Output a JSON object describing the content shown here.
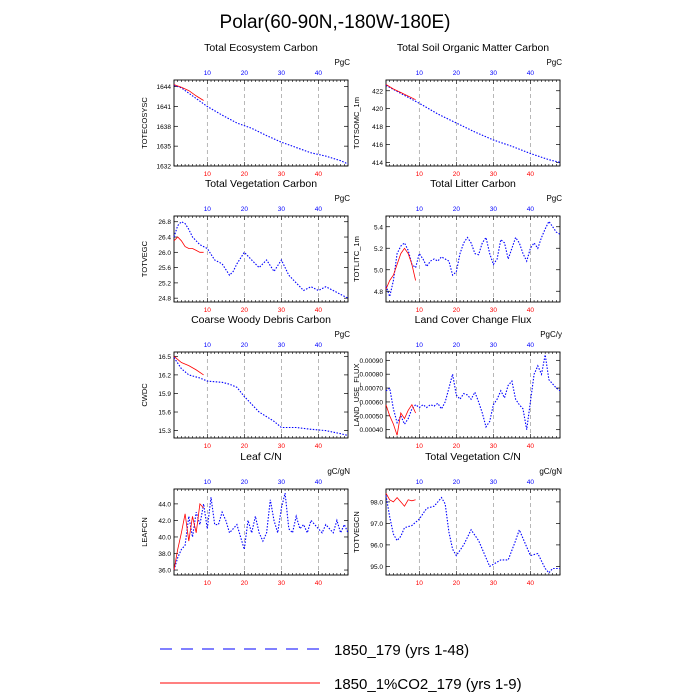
{
  "page_title": "Polar(60-90N,-180W-180E)",
  "colors": {
    "control": "#0000ff",
    "experiment": "#ff0000",
    "axis": "#000000",
    "grid": "#999999"
  },
  "legend": [
    {
      "name": "1850_179 (yrs 1-48)",
      "style": "dashed",
      "color": "#0000ff"
    },
    {
      "name": "1850_1%CO2_179 (yrs 1-9)",
      "style": "solid",
      "color": "#ff0000"
    }
  ],
  "chart_data": [
    {
      "type": "line",
      "title": "Total Ecosystem Carbon",
      "ylabel": "TOTECOSYSC",
      "unit": "PgC",
      "xlim": [
        1,
        48
      ],
      "xticks": [
        10,
        20,
        30,
        40
      ],
      "yticks": [
        1632,
        1635,
        1638,
        1641,
        1644
      ],
      "ylim": [
        1632,
        1645
      ],
      "grid_x": true,
      "series": [
        {
          "name": "1850_179 (yrs 1-48)",
          "x": [
            1,
            3,
            5,
            8,
            10,
            14,
            18,
            22,
            26,
            30,
            34,
            38,
            42,
            46,
            48
          ],
          "y": [
            1644.2,
            1643.8,
            1643.0,
            1641.8,
            1641.0,
            1639.7,
            1638.5,
            1637.7,
            1636.6,
            1635.6,
            1634.8,
            1634.0,
            1633.5,
            1632.8,
            1632.3
          ]
        },
        {
          "name": "1850_1%CO2_179 (yrs 1-9)",
          "x": [
            1,
            3,
            5,
            7,
            9
          ],
          "y": [
            1644.3,
            1643.9,
            1643.4,
            1642.6,
            1641.9
          ]
        }
      ]
    },
    {
      "type": "line",
      "title": "Total Soil Organic Matter Carbon",
      "ylabel": "TOTSOMC_1m",
      "unit": "PgC",
      "xlim": [
        1,
        48
      ],
      "xticks": [
        10,
        20,
        30,
        40
      ],
      "yticks": [
        414.0,
        416.0,
        418.0,
        420.0,
        422.0
      ],
      "ylim": [
        413.6,
        423.2
      ],
      "grid_x": true,
      "series": [
        {
          "name": "1850_179 (yrs 1-48)",
          "x": [
            1,
            5,
            10,
            15,
            20,
            25,
            30,
            35,
            40,
            45,
            48
          ],
          "y": [
            422.6,
            421.7,
            420.6,
            419.4,
            418.4,
            417.4,
            416.5,
            415.8,
            415.0,
            414.3,
            414.0
          ]
        },
        {
          "name": "1850_1%CO2_179 (yrs 1-9)",
          "x": [
            1,
            3,
            5,
            7,
            9
          ],
          "y": [
            422.7,
            422.2,
            421.8,
            421.4,
            421.0
          ]
        }
      ]
    },
    {
      "type": "line",
      "title": "Total Vegetation Carbon",
      "ylabel": "TOTVEGC",
      "unit": "PgC",
      "xlim": [
        1,
        48
      ],
      "xticks": [
        10,
        20,
        30,
        40
      ],
      "yticks": [
        24.8,
        25.2,
        25.6,
        26.0,
        26.4,
        26.8
      ],
      "ylim": [
        24.7,
        26.95
      ],
      "grid_x": true,
      "series": [
        {
          "name": "1850_179 (yrs 1-48)",
          "x": [
            1,
            2,
            3,
            4,
            5,
            6,
            8,
            10,
            12,
            14,
            16,
            17,
            18,
            20,
            22,
            24,
            26,
            28,
            30,
            32,
            34,
            36,
            38,
            40,
            42,
            44,
            46,
            48
          ],
          "y": [
            26.4,
            26.7,
            26.8,
            26.75,
            26.6,
            26.4,
            26.2,
            26.1,
            25.8,
            25.7,
            25.4,
            25.5,
            25.7,
            26.0,
            25.8,
            25.6,
            25.8,
            25.5,
            25.8,
            25.4,
            25.2,
            25.0,
            25.1,
            25.0,
            25.1,
            25.0,
            24.9,
            24.8
          ]
        },
        {
          "name": "1850_1%CO2_179 (yrs 1-9)",
          "x": [
            1,
            2,
            3,
            4,
            5,
            6,
            7,
            8,
            9
          ],
          "y": [
            26.3,
            26.4,
            26.3,
            26.15,
            26.1,
            26.1,
            26.05,
            26.0,
            26.0
          ]
        }
      ]
    },
    {
      "type": "line",
      "title": "Total Litter Carbon",
      "ylabel": "TOTLITC_1m",
      "unit": "PgC",
      "xlim": [
        1,
        48
      ],
      "xticks": [
        10,
        20,
        30,
        40
      ],
      "yticks": [
        4.8,
        5.0,
        5.2,
        5.4
      ],
      "ylim": [
        4.7,
        5.5
      ],
      "grid_x": true,
      "series": [
        {
          "name": "1850_179 (yrs 1-48)",
          "x": [
            1,
            2,
            3,
            4,
            5,
            6,
            7,
            8,
            9,
            10,
            11,
            12,
            13,
            14,
            15,
            16,
            17,
            18,
            19,
            20,
            21,
            22,
            23,
            24,
            25,
            26,
            27,
            28,
            29,
            30,
            31,
            32,
            33,
            34,
            35,
            36,
            37,
            38,
            39,
            40,
            41,
            42,
            43,
            44,
            45,
            46,
            47,
            48
          ],
          "y": [
            4.85,
            4.75,
            4.9,
            5.15,
            5.22,
            5.25,
            5.18,
            5.05,
            5.02,
            5.15,
            5.1,
            5.03,
            5.08,
            5.1,
            5.08,
            5.12,
            5.1,
            5.08,
            4.95,
            4.98,
            5.15,
            5.25,
            5.3,
            5.25,
            5.15,
            5.14,
            5.25,
            5.3,
            5.15,
            5.05,
            5.1,
            5.28,
            5.25,
            5.1,
            5.2,
            5.3,
            5.25,
            5.15,
            5.08,
            5.2,
            5.25,
            5.2,
            5.3,
            5.38,
            5.45,
            5.4,
            5.35,
            5.33
          ]
        },
        {
          "name": "1850_1%CO2_179 (yrs 1-9)",
          "x": [
            1,
            2,
            3,
            4,
            5,
            6,
            7,
            8,
            9
          ],
          "y": [
            4.82,
            4.9,
            4.95,
            5.05,
            5.15,
            5.2,
            5.15,
            5.05,
            4.9
          ]
        }
      ]
    },
    {
      "type": "line",
      "title": "Coarse Woody Debris Carbon",
      "ylabel": "CWDC",
      "unit": "PgC",
      "xlim": [
        1,
        48
      ],
      "xticks": [
        10,
        20,
        30,
        40
      ],
      "yticks": [
        15.3,
        15.6,
        15.9,
        16.2,
        16.5
      ],
      "ylim": [
        15.18,
        16.57
      ],
      "grid_x": true,
      "series": [
        {
          "name": "1850_179 (yrs 1-48)",
          "x": [
            1,
            3,
            5,
            8,
            10,
            14,
            16,
            18,
            20,
            24,
            28,
            30,
            34,
            38,
            42,
            46,
            48
          ],
          "y": [
            16.48,
            16.3,
            16.2,
            16.15,
            16.1,
            16.08,
            16.05,
            16.0,
            15.85,
            15.6,
            15.45,
            15.35,
            15.35,
            15.32,
            15.3,
            15.25,
            15.22
          ]
        },
        {
          "name": "1850_1%CO2_179 (yrs 1-9)",
          "x": [
            1,
            3,
            5,
            7,
            9
          ],
          "y": [
            16.5,
            16.4,
            16.35,
            16.28,
            16.2
          ]
        }
      ]
    },
    {
      "type": "line",
      "title": "Land Cover Change Flux",
      "ylabel": "LAND_USE_FLUX",
      "unit": "PgC/y",
      "xlim": [
        1,
        48
      ],
      "xticks": [
        10,
        20,
        30,
        40
      ],
      "yticks": [
        0.0004,
        0.0005,
        0.0006,
        0.0007,
        0.0008,
        0.0009
      ],
      "ylim": [
        0.00034,
        0.00096
      ],
      "grid_x": true,
      "series": [
        {
          "name": "1850_179 (yrs 1-48)",
          "x": [
            1,
            2,
            3,
            4,
            5,
            6,
            7,
            8,
            9,
            10,
            11,
            12,
            13,
            14,
            15,
            16,
            17,
            18,
            19,
            20,
            21,
            22,
            23,
            24,
            25,
            26,
            27,
            28,
            29,
            30,
            31,
            32,
            33,
            34,
            35,
            36,
            37,
            38,
            39,
            40,
            41,
            42,
            43,
            44,
            45,
            46,
            47,
            48
          ],
          "y": [
            0.00068,
            0.0007,
            0.00055,
            0.00045,
            0.0005,
            0.00044,
            0.00048,
            0.00055,
            0.00058,
            0.00056,
            0.00058,
            0.00056,
            0.00058,
            0.00057,
            0.00059,
            0.00055,
            0.0006,
            0.0007,
            0.0008,
            0.00065,
            0.00062,
            0.00066,
            0.00065,
            0.00062,
            0.00067,
            0.0006,
            0.00052,
            0.00042,
            0.00046,
            0.00058,
            0.00062,
            0.00068,
            0.00063,
            0.00072,
            0.00075,
            0.00062,
            0.00058,
            0.00055,
            0.0004,
            0.0006,
            0.0008,
            0.00086,
            0.0008,
            0.00094,
            0.00076,
            0.00073,
            0.0007,
            0.00068
          ]
        },
        {
          "name": "1850_1%CO2_179 (yrs 1-9)",
          "x": [
            1,
            2,
            3,
            4,
            5,
            6,
            7,
            8,
            9
          ],
          "y": [
            0.00058,
            0.0005,
            0.00044,
            0.00036,
            0.00052,
            0.00048,
            0.00054,
            0.00058,
            0.00052
          ]
        }
      ]
    },
    {
      "type": "line",
      "title": "Leaf C/N",
      "ylabel": "LEAFCN",
      "unit": "gC/gN",
      "xlim": [
        1,
        48
      ],
      "xticks": [
        10,
        20,
        30,
        40
      ],
      "yticks": [
        36.0,
        38.0,
        40.0,
        42.0,
        44.0
      ],
      "ylim": [
        35.4,
        45.8
      ],
      "grid_x": true,
      "series": [
        {
          "name": "1850_179 (yrs 1-48)",
          "x": [
            1,
            2,
            3,
            4,
            5,
            6,
            7,
            8,
            9,
            10,
            11,
            12,
            13,
            14,
            15,
            16,
            17,
            18,
            19,
            20,
            21,
            22,
            23,
            24,
            25,
            26,
            27,
            28,
            29,
            30,
            31,
            32,
            33,
            34,
            35,
            36,
            37,
            38,
            39,
            40,
            41,
            42,
            43,
            44,
            45,
            46,
            47,
            48
          ],
          "y": [
            36.0,
            37.5,
            38.5,
            39.0,
            42.5,
            40.0,
            43.0,
            41.5,
            44.0,
            41.0,
            44.8,
            41.5,
            41.5,
            43.0,
            42.0,
            40.5,
            41.0,
            41.5,
            40.0,
            38.5,
            42.0,
            40.5,
            42.5,
            40.5,
            39.5,
            40.5,
            44.5,
            42.0,
            40.5,
            43.5,
            45.3,
            41.0,
            40.5,
            42.5,
            41.0,
            41.5,
            40.5,
            42.0,
            41.5,
            41.0,
            40.5,
            41.5,
            41.0,
            40.5,
            42.0,
            40.5,
            41.5,
            40.5
          ]
        },
        {
          "name": "1850_1%CO2_179 (yrs 1-9)",
          "x": [
            1,
            2,
            3,
            4,
            5,
            6,
            7,
            8,
            9
          ],
          "y": [
            36.0,
            38.5,
            40.5,
            42.8,
            39.5,
            42.5,
            40.5,
            44.0,
            43.5
          ]
        }
      ]
    },
    {
      "type": "line",
      "title": "Total Vegetation C/N",
      "ylabel": "TOTVEGCN",
      "unit": "gC/gN",
      "xlim": [
        1,
        48
      ],
      "xticks": [
        10,
        20,
        30,
        40
      ],
      "yticks": [
        95.0,
        96.0,
        97.0,
        98.0
      ],
      "ylim": [
        94.6,
        98.6
      ],
      "grid_x": true,
      "series": [
        {
          "name": "1850_179 (yrs 1-48)",
          "x": [
            1,
            2,
            3,
            4,
            5,
            6,
            8,
            10,
            12,
            14,
            16,
            17,
            18,
            19,
            20,
            22,
            24,
            26,
            28,
            29,
            30,
            32,
            34,
            36,
            37,
            38,
            40,
            42,
            44,
            45,
            46,
            48
          ],
          "y": [
            98.3,
            97.3,
            96.5,
            96.2,
            96.4,
            96.8,
            96.9,
            97.2,
            97.7,
            97.8,
            98.2,
            97.9,
            96.6,
            95.8,
            95.5,
            96.0,
            96.7,
            96.2,
            95.4,
            95.0,
            95.1,
            95.3,
            95.3,
            96.2,
            96.7,
            96.3,
            95.5,
            95.6,
            94.9,
            94.7,
            94.9,
            94.9
          ]
        },
        {
          "name": "1850_1%CO2_179 (yrs 1-9)",
          "x": [
            1,
            2,
            3,
            4,
            5,
            6,
            7,
            8,
            9
          ],
          "y": [
            98.4,
            98.1,
            98.0,
            98.2,
            98.0,
            97.8,
            98.1,
            98.05,
            98.1
          ]
        }
      ]
    }
  ]
}
